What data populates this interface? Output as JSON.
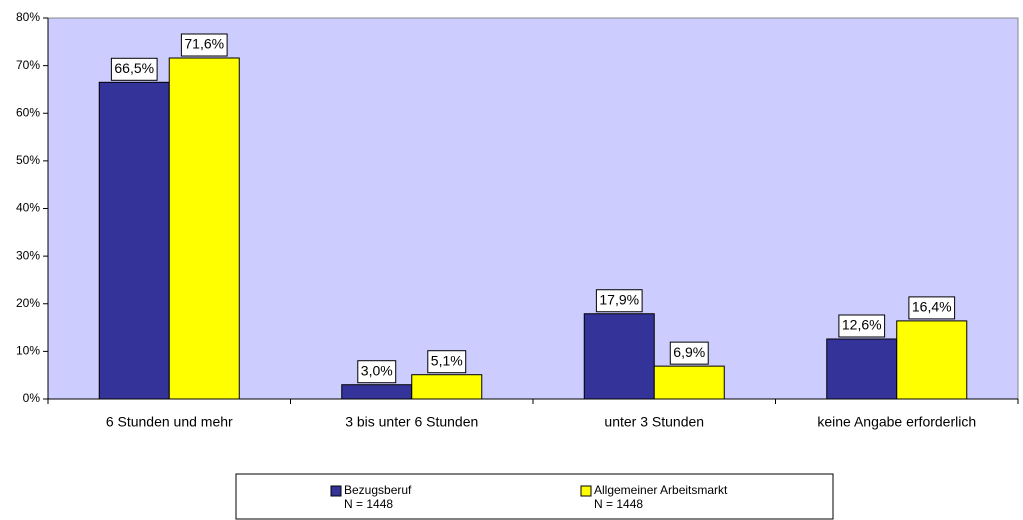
{
  "chart_data": {
    "type": "bar",
    "categories": [
      "6 Stunden und mehr",
      "3 bis unter 6 Stunden",
      "unter 3 Stunden",
      "keine Angabe erforderlich"
    ],
    "series": [
      {
        "name": "Bezugsberuf",
        "note": "N = 1448",
        "color": "#333399",
        "values": [
          66.5,
          3.0,
          17.9,
          12.6
        ],
        "value_labels": [
          "66,5%",
          "3,0%",
          "17,9%",
          "12,6%"
        ]
      },
      {
        "name": "Allgemeiner Arbeitsmarkt",
        "note": "N = 1448",
        "color": "#ffff00",
        "values": [
          71.6,
          5.1,
          6.9,
          16.4
        ],
        "value_labels": [
          "71,6%",
          "5,1%",
          "6,9%",
          "16,4%"
        ]
      }
    ],
    "ylim": [
      0,
      80
    ],
    "yticks": [
      {
        "value": 0,
        "label": "0%"
      },
      {
        "value": 10,
        "label": "10%"
      },
      {
        "value": 20,
        "label": "20%"
      },
      {
        "value": 30,
        "label": "30%"
      },
      {
        "value": 40,
        "label": "40%"
      },
      {
        "value": 50,
        "label": "50%"
      },
      {
        "value": 60,
        "label": "60%"
      },
      {
        "value": 70,
        "label": "70%"
      },
      {
        "value": 80,
        "label": "80%"
      }
    ],
    "plot_background": "#ccccff",
    "legend": "bottom"
  }
}
